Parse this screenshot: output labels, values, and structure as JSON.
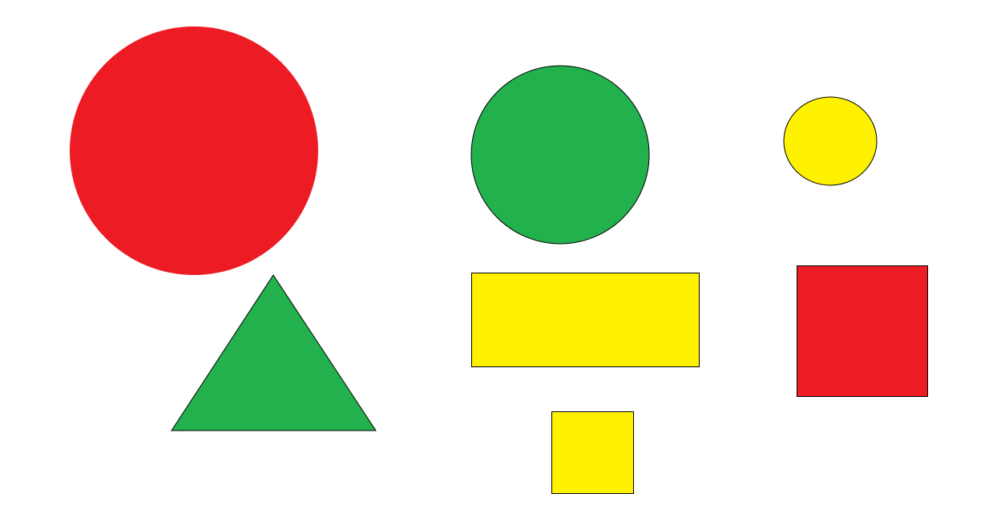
{
  "canvas": {
    "background": "#ffffff"
  },
  "colors": {
    "red": "#ed1c24",
    "green": "#22b14c",
    "yellow": "#fff200",
    "outline": "#000000"
  },
  "shapes": [
    {
      "name": "large-red-circle",
      "kind": "circle",
      "color": "red",
      "outlined": false
    },
    {
      "name": "green-triangle",
      "kind": "triangle",
      "color": "green",
      "outlined": true
    },
    {
      "name": "green-circle",
      "kind": "circle",
      "color": "green",
      "outlined": true
    },
    {
      "name": "yellow-rectangle",
      "kind": "rectangle",
      "color": "yellow",
      "outlined": true
    },
    {
      "name": "small-yellow-square",
      "kind": "square",
      "color": "yellow",
      "outlined": true
    },
    {
      "name": "small-yellow-ellipse",
      "kind": "ellipse",
      "color": "yellow",
      "outlined": true
    },
    {
      "name": "red-square",
      "kind": "square",
      "color": "red",
      "outlined": true
    }
  ]
}
